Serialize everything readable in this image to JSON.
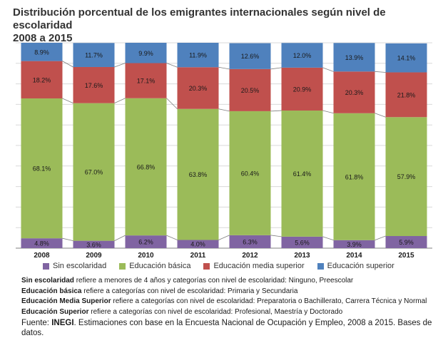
{
  "title_line1": "Distribución porcentual de los emigrantes internacionales según nivel de escolaridad",
  "title_line2": "2008 a 2015",
  "chart_data": {
    "type": "bar",
    "stacked": true,
    "title": "Distribución porcentual de los emigrantes internacionales según nivel de escolaridad 2008 a 2015",
    "categories": [
      "2008",
      "2009",
      "2010",
      "2011",
      "2012",
      "2013",
      "2014",
      "2015"
    ],
    "ylim": [
      0,
      100
    ],
    "series": [
      {
        "name": "Sin escolaridad",
        "color": "#8064a2",
        "values": [
          4.8,
          3.6,
          6.2,
          4.0,
          6.3,
          5.6,
          3.9,
          5.9
        ],
        "labels": [
          "4.8%",
          "3.6%",
          "6.2%",
          "4.0%",
          "6.3%",
          "5.6%",
          "3.9%",
          "5.9%"
        ]
      },
      {
        "name": "Educación básica",
        "color": "#9bbb59",
        "values": [
          68.1,
          67.0,
          66.8,
          63.8,
          60.4,
          61.4,
          61.8,
          57.9
        ],
        "labels": [
          "68.1%",
          "67.0%",
          "66.8%",
          "63.8%",
          "60.4%",
          "61.4%",
          "61.8%",
          "57.9%"
        ]
      },
      {
        "name": "Educación media superior",
        "color": "#c0504d",
        "values": [
          18.2,
          17.6,
          17.1,
          20.3,
          20.5,
          20.9,
          20.3,
          21.8
        ],
        "labels": [
          "18.2%",
          "17.6%",
          "17.1%",
          "20.3%",
          "20.5%",
          "20.9%",
          "20.3%",
          "21.8%"
        ]
      },
      {
        "name": "Educación superior",
        "color": "#4f81bd",
        "values": [
          8.9,
          11.7,
          9.9,
          11.9,
          12.6,
          12.0,
          13.9,
          14.1
        ],
        "labels": [
          "8.9%",
          "11.7%",
          "9.9%",
          "11.9%",
          "12.6%",
          "12.0%",
          "13.9%",
          "14.1%"
        ]
      }
    ],
    "legend_position": "bottom"
  },
  "notes": [
    {
      "term": "Sin escolaridad",
      "text": " refiere a menores de 4 años y categorías con nivel de escolaridad: Ninguno, Preescolar"
    },
    {
      "term": "Educación básica",
      "text": " refiere a categorías con nivel de escolaridad: Primaria y Secundaria"
    },
    {
      "term": "Educación Media Superior",
      "text": " refiere a categorías con nivel de escolaridad: Preparatoria o Bachillerato, Carrera Técnica y Normal"
    },
    {
      "term": "Educación Superior",
      "text": " refiere a categorías con nivel de escolaridad: Profesional, Maestría y Doctorado"
    }
  ],
  "source": {
    "prefix": "Fuente: ",
    "org": "INEGI",
    "text": ". Estimaciones con base en la Encuesta Nacional de Ocupación y Empleo, 2008 a 2015. Bases de datos."
  }
}
